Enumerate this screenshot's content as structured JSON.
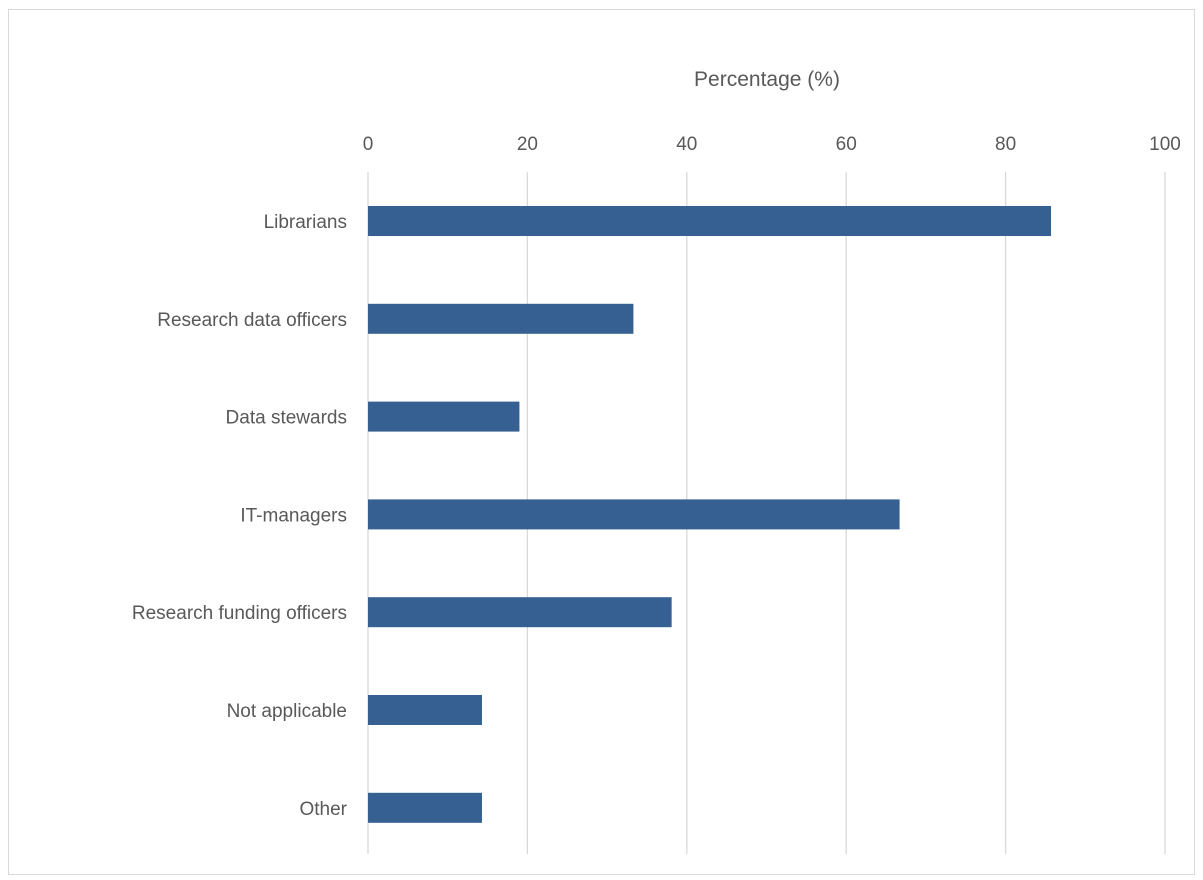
{
  "chart_data": {
    "type": "bar",
    "orientation": "horizontal",
    "title": "",
    "xlabel": "Percentage (%)",
    "ylabel": "",
    "xlim": [
      0,
      100
    ],
    "xticks": [
      0,
      20,
      40,
      60,
      80,
      100
    ],
    "xtick_labels": [
      "0",
      "20",
      "40",
      "60",
      "80",
      "100"
    ],
    "x_axis_position": "top",
    "grid": true,
    "legend": "none",
    "categories": [
      "Librarians",
      "Research data officers",
      "Data stewards",
      "IT-managers",
      "Research funding officers",
      "Not applicable",
      "Other"
    ],
    "values": [
      85.7,
      33.3,
      19.0,
      66.7,
      38.1,
      14.3,
      14.3
    ],
    "colors": {
      "bar": "#376092",
      "grid": "#d9d9d9",
      "text": "#595959"
    }
  }
}
